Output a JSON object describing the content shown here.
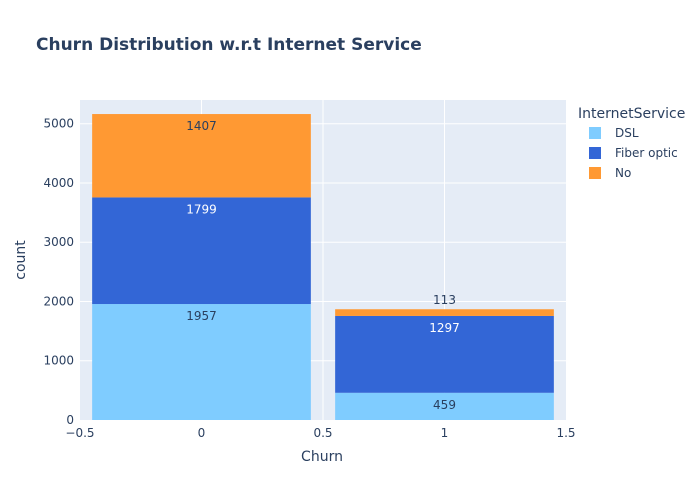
{
  "chart_data": {
    "type": "bar",
    "barmode": "stack",
    "title": "Churn Distribution w.r.t Internet Service",
    "xlabel": "Churn",
    "ylabel": "count",
    "x": [
      0,
      1
    ],
    "xlim": [
      -0.5,
      1.5
    ],
    "ylim": [
      0,
      5400
    ],
    "xticks": [
      -0.5,
      0,
      0.5,
      1,
      1.5
    ],
    "xtick_labels": [
      "−0.5",
      "0",
      "0.5",
      "1",
      "1.5"
    ],
    "yticks": [
      0,
      1000,
      2000,
      3000,
      4000,
      5000
    ],
    "ytick_labels": [
      "0",
      "1000",
      "2000",
      "3000",
      "4000",
      "5000"
    ],
    "grid": true,
    "legend": {
      "title": "InternetService",
      "placement": "right"
    },
    "series": [
      {
        "name": "DSL",
        "values": [
          1957,
          459
        ],
        "color": "#7fccff",
        "label_color": "#2a3f5f"
      },
      {
        "name": "Fiber optic",
        "values": [
          1799,
          1297
        ],
        "color": "#3366d6",
        "label_color": "#ffffff"
      },
      {
        "name": "No",
        "values": [
          1407,
          113
        ],
        "color": "#ff9933",
        "label_color": "#2a3f5f"
      }
    ],
    "colors": {
      "plot_bg": "#e5ecf6",
      "grid": "#ffffff",
      "text": "#2a3f5f"
    }
  }
}
